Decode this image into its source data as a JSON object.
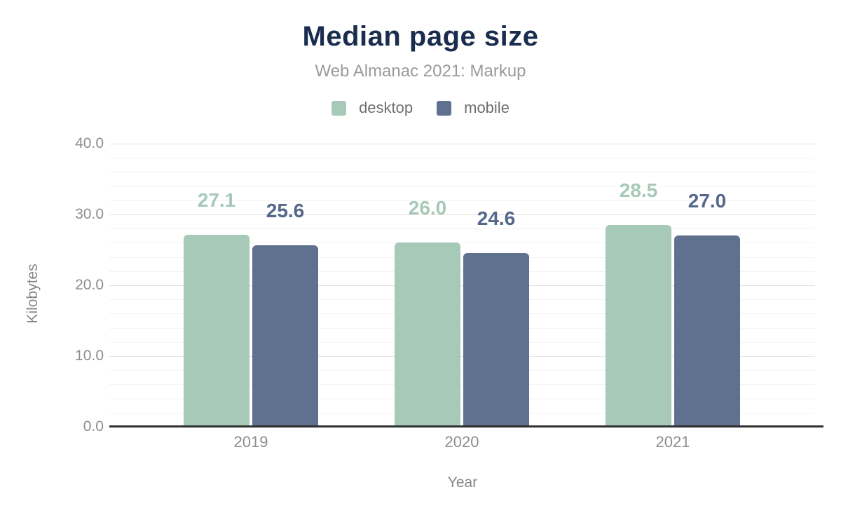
{
  "chart_data": {
    "type": "bar",
    "title": "Median page size",
    "subtitle": "Web Almanac 2021: Markup",
    "xlabel": "Year",
    "ylabel": "Kilobytes",
    "categories": [
      "2019",
      "2020",
      "2021"
    ],
    "series": [
      {
        "name": "desktop",
        "color": "#a6c9b8",
        "label_color": "#a6c9b8",
        "values": [
          27.1,
          26.0,
          28.5
        ]
      },
      {
        "name": "mobile",
        "color": "#5f718e",
        "label_color": "#54688c",
        "values": [
          25.6,
          24.6,
          27.0
        ]
      }
    ],
    "ylim": [
      0,
      40
    ],
    "yticks": [
      0,
      10,
      20,
      30,
      40
    ],
    "ytick_decimals": 1,
    "minor_grid_step": 2,
    "grid": true,
    "legend_position": "top",
    "style": {
      "title_color": "#1b2d4f",
      "subtitle_color": "#9b9b9b",
      "legend_text_color": "#6f6f6f",
      "tick_label_color": "#8d8d8d",
      "axis_title_color": "#868686",
      "grid_minor_color": "#f3f3f3",
      "grid_major_color": "#e2e2e2",
      "axis_line_color": "#303030",
      "background": "#ffffff"
    }
  }
}
